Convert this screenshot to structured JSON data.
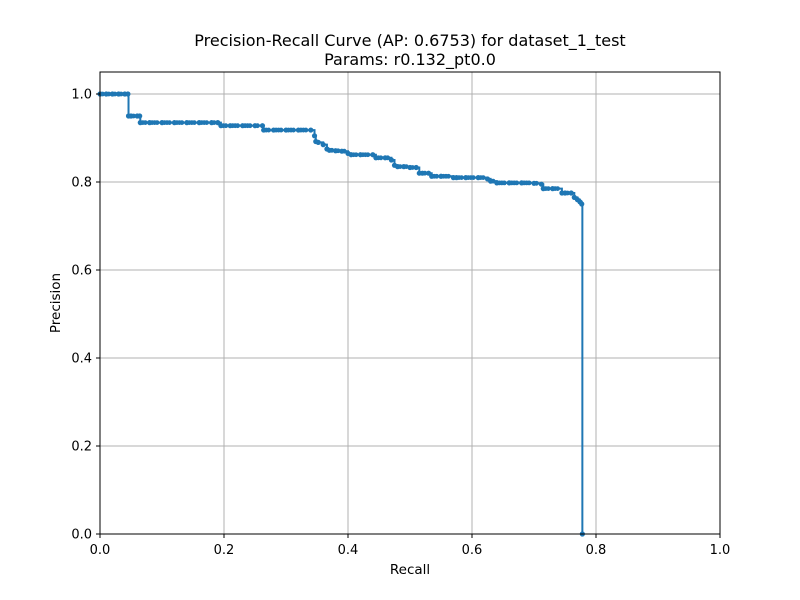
{
  "chart_data": {
    "type": "line",
    "title": "Precision-Recall Curve (AP: 0.6753) for dataset_1_test",
    "subtitle": "Params: r0.132_pt0.0",
    "xlabel": "Recall",
    "ylabel": "Precision",
    "xlim": [
      0.0,
      1.0
    ],
    "ylim": [
      0.0,
      1.05
    ],
    "xticks": [
      "0.0",
      "0.2",
      "0.4",
      "0.6",
      "0.8",
      "1.0"
    ],
    "yticks": [
      "0.0",
      "0.2",
      "0.4",
      "0.6",
      "0.8",
      "1.0"
    ],
    "grid": true,
    "series_color": "#1f77b4",
    "series": [
      {
        "x": [
          0.0,
          0.01,
          0.02,
          0.03,
          0.04,
          0.045,
          0.046,
          0.05,
          0.06,
          0.064,
          0.065,
          0.08,
          0.1,
          0.12,
          0.14,
          0.16,
          0.18,
          0.19,
          0.195,
          0.21,
          0.23,
          0.25,
          0.262,
          0.264,
          0.28,
          0.3,
          0.32,
          0.34,
          0.346,
          0.348,
          0.352,
          0.36,
          0.366,
          0.37,
          0.38,
          0.39,
          0.4,
          0.405,
          0.42,
          0.44,
          0.445,
          0.46,
          0.47,
          0.475,
          0.48,
          0.49,
          0.5,
          0.51,
          0.515,
          0.52,
          0.53,
          0.535,
          0.55,
          0.57,
          0.575,
          0.59,
          0.61,
          0.625,
          0.63,
          0.64,
          0.66,
          0.68,
          0.7,
          0.712,
          0.715,
          0.73,
          0.745,
          0.75,
          0.76,
          0.765,
          0.77,
          0.774,
          0.777,
          0.778
        ],
        "y": [
          1.0,
          1.0,
          1.0,
          1.0,
          1.0,
          1.0,
          0.95,
          0.95,
          0.95,
          0.95,
          0.935,
          0.935,
          0.935,
          0.935,
          0.935,
          0.935,
          0.935,
          0.935,
          0.928,
          0.928,
          0.928,
          0.928,
          0.928,
          0.918,
          0.918,
          0.918,
          0.918,
          0.918,
          0.905,
          0.892,
          0.89,
          0.885,
          0.875,
          0.872,
          0.871,
          0.87,
          0.865,
          0.862,
          0.862,
          0.862,
          0.855,
          0.855,
          0.85,
          0.838,
          0.835,
          0.835,
          0.833,
          0.833,
          0.82,
          0.82,
          0.82,
          0.813,
          0.813,
          0.81,
          0.81,
          0.81,
          0.81,
          0.807,
          0.802,
          0.798,
          0.798,
          0.798,
          0.797,
          0.795,
          0.785,
          0.785,
          0.775,
          0.775,
          0.775,
          0.765,
          0.76,
          0.755,
          0.75,
          0.0
        ]
      }
    ]
  }
}
